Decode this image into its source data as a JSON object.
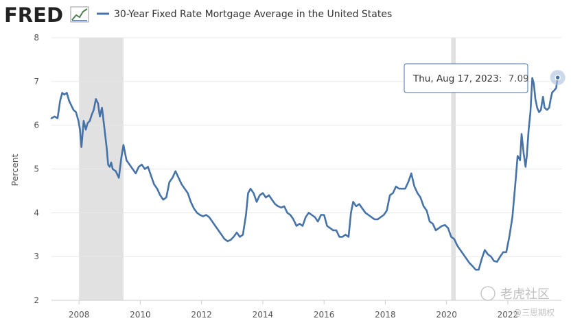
{
  "header": {
    "logo_text": "FRED",
    "legend_label": "30-Year Fixed Rate Mortgage Average in the United States"
  },
  "tooltip": {
    "date_text": "Thu, Aug 17, 2023:",
    "value_text": "7.09"
  },
  "watermark": {
    "brand_text": "老虎社区",
    "handle_text": "@三思期权"
  },
  "colors": {
    "series": "#4572a7",
    "recession": "#e1e1e1",
    "grid": "#e6e6e6",
    "tooltip_border": "#4572a7"
  },
  "chart_data": {
    "type": "line",
    "title": "30-Year Fixed Rate Mortgage Average in the United States",
    "ylabel": "Percent",
    "xlim": [
      2007.1,
      2023.75
    ],
    "ylim": [
      2,
      8
    ],
    "x_ticks": [
      "2008",
      "2010",
      "2012",
      "2014",
      "2016",
      "2018",
      "2020",
      "2022"
    ],
    "y_ticks": [
      "2",
      "3",
      "4",
      "5",
      "6",
      "7",
      "8"
    ],
    "grid": "horizontal",
    "recessions": [
      [
        2008.0,
        2009.45
      ],
      [
        2020.15,
        2020.3
      ]
    ],
    "series": [
      {
        "name": "30-Year Fixed Rate Mortgage Average in the United States",
        "points": [
          [
            2007.1,
            6.16
          ],
          [
            2007.2,
            6.2
          ],
          [
            2007.3,
            6.16
          ],
          [
            2007.38,
            6.55
          ],
          [
            2007.45,
            6.74
          ],
          [
            2007.52,
            6.7
          ],
          [
            2007.6,
            6.74
          ],
          [
            2007.68,
            6.55
          ],
          [
            2007.75,
            6.45
          ],
          [
            2007.82,
            6.35
          ],
          [
            2007.9,
            6.3
          ],
          [
            2007.98,
            6.1
          ],
          [
            2008.03,
            5.9
          ],
          [
            2008.08,
            5.5
          ],
          [
            2008.15,
            6.1
          ],
          [
            2008.22,
            5.9
          ],
          [
            2008.28,
            6.05
          ],
          [
            2008.35,
            6.1
          ],
          [
            2008.42,
            6.25
          ],
          [
            2008.48,
            6.35
          ],
          [
            2008.55,
            6.6
          ],
          [
            2008.62,
            6.5
          ],
          [
            2008.68,
            6.2
          ],
          [
            2008.75,
            6.4
          ],
          [
            2008.8,
            6.1
          ],
          [
            2008.85,
            5.8
          ],
          [
            2008.9,
            5.5
          ],
          [
            2008.95,
            5.1
          ],
          [
            2009.0,
            5.05
          ],
          [
            2009.05,
            5.15
          ],
          [
            2009.1,
            5.0
          ],
          [
            2009.2,
            4.95
          ],
          [
            2009.3,
            4.8
          ],
          [
            2009.38,
            5.25
          ],
          [
            2009.45,
            5.55
          ],
          [
            2009.55,
            5.2
          ],
          [
            2009.65,
            5.1
          ],
          [
            2009.75,
            5.0
          ],
          [
            2009.85,
            4.9
          ],
          [
            2009.95,
            5.05
          ],
          [
            2010.05,
            5.1
          ],
          [
            2010.15,
            5.0
          ],
          [
            2010.25,
            5.05
          ],
          [
            2010.35,
            4.85
          ],
          [
            2010.45,
            4.65
          ],
          [
            2010.55,
            4.55
          ],
          [
            2010.65,
            4.4
          ],
          [
            2010.75,
            4.3
          ],
          [
            2010.85,
            4.35
          ],
          [
            2010.95,
            4.7
          ],
          [
            2011.05,
            4.8
          ],
          [
            2011.15,
            4.95
          ],
          [
            2011.25,
            4.8
          ],
          [
            2011.35,
            4.65
          ],
          [
            2011.45,
            4.55
          ],
          [
            2011.55,
            4.45
          ],
          [
            2011.65,
            4.25
          ],
          [
            2011.75,
            4.1
          ],
          [
            2011.85,
            4.0
          ],
          [
            2011.95,
            3.95
          ],
          [
            2012.05,
            3.92
          ],
          [
            2012.15,
            3.95
          ],
          [
            2012.25,
            3.9
          ],
          [
            2012.35,
            3.8
          ],
          [
            2012.45,
            3.7
          ],
          [
            2012.55,
            3.6
          ],
          [
            2012.65,
            3.5
          ],
          [
            2012.75,
            3.4
          ],
          [
            2012.85,
            3.35
          ],
          [
            2012.95,
            3.38
          ],
          [
            2013.05,
            3.45
          ],
          [
            2013.15,
            3.55
          ],
          [
            2013.25,
            3.45
          ],
          [
            2013.35,
            3.5
          ],
          [
            2013.45,
            3.95
          ],
          [
            2013.52,
            4.45
          ],
          [
            2013.6,
            4.55
          ],
          [
            2013.7,
            4.45
          ],
          [
            2013.8,
            4.25
          ],
          [
            2013.9,
            4.4
          ],
          [
            2014.0,
            4.45
          ],
          [
            2014.1,
            4.35
          ],
          [
            2014.2,
            4.4
          ],
          [
            2014.3,
            4.3
          ],
          [
            2014.4,
            4.2
          ],
          [
            2014.5,
            4.15
          ],
          [
            2014.6,
            4.12
          ],
          [
            2014.7,
            4.15
          ],
          [
            2014.8,
            4.0
          ],
          [
            2014.9,
            3.95
          ],
          [
            2015.0,
            3.85
          ],
          [
            2015.1,
            3.7
          ],
          [
            2015.2,
            3.75
          ],
          [
            2015.3,
            3.7
          ],
          [
            2015.4,
            3.9
          ],
          [
            2015.5,
            4.0
          ],
          [
            2015.6,
            3.95
          ],
          [
            2015.7,
            3.9
          ],
          [
            2015.8,
            3.8
          ],
          [
            2015.9,
            3.95
          ],
          [
            2016.0,
            3.95
          ],
          [
            2016.1,
            3.7
          ],
          [
            2016.2,
            3.65
          ],
          [
            2016.3,
            3.6
          ],
          [
            2016.4,
            3.6
          ],
          [
            2016.5,
            3.45
          ],
          [
            2016.6,
            3.45
          ],
          [
            2016.7,
            3.5
          ],
          [
            2016.8,
            3.45
          ],
          [
            2016.88,
            4.0
          ],
          [
            2016.95,
            4.25
          ],
          [
            2017.05,
            4.15
          ],
          [
            2017.15,
            4.2
          ],
          [
            2017.25,
            4.1
          ],
          [
            2017.35,
            4.0
          ],
          [
            2017.45,
            3.95
          ],
          [
            2017.55,
            3.9
          ],
          [
            2017.65,
            3.85
          ],
          [
            2017.75,
            3.85
          ],
          [
            2017.85,
            3.9
          ],
          [
            2017.95,
            3.95
          ],
          [
            2018.05,
            4.05
          ],
          [
            2018.15,
            4.4
          ],
          [
            2018.25,
            4.45
          ],
          [
            2018.35,
            4.6
          ],
          [
            2018.45,
            4.55
          ],
          [
            2018.55,
            4.55
          ],
          [
            2018.65,
            4.55
          ],
          [
            2018.75,
            4.7
          ],
          [
            2018.85,
            4.9
          ],
          [
            2018.95,
            4.6
          ],
          [
            2019.05,
            4.45
          ],
          [
            2019.15,
            4.35
          ],
          [
            2019.25,
            4.15
          ],
          [
            2019.35,
            4.05
          ],
          [
            2019.45,
            3.8
          ],
          [
            2019.55,
            3.75
          ],
          [
            2019.65,
            3.6
          ],
          [
            2019.75,
            3.65
          ],
          [
            2019.85,
            3.7
          ],
          [
            2019.95,
            3.72
          ],
          [
            2020.05,
            3.65
          ],
          [
            2020.15,
            3.45
          ],
          [
            2020.25,
            3.4
          ],
          [
            2020.35,
            3.25
          ],
          [
            2020.45,
            3.15
          ],
          [
            2020.55,
            3.05
          ],
          [
            2020.65,
            2.95
          ],
          [
            2020.75,
            2.85
          ],
          [
            2020.85,
            2.78
          ],
          [
            2020.95,
            2.7
          ],
          [
            2021.05,
            2.7
          ],
          [
            2021.15,
            2.95
          ],
          [
            2021.25,
            3.15
          ],
          [
            2021.35,
            3.05
          ],
          [
            2021.45,
            3.0
          ],
          [
            2021.55,
            2.9
          ],
          [
            2021.65,
            2.88
          ],
          [
            2021.75,
            3.0
          ],
          [
            2021.85,
            3.1
          ],
          [
            2021.95,
            3.1
          ],
          [
            2022.05,
            3.45
          ],
          [
            2022.15,
            3.9
          ],
          [
            2022.25,
            4.7
          ],
          [
            2022.32,
            5.3
          ],
          [
            2022.4,
            5.2
          ],
          [
            2022.45,
            5.8
          ],
          [
            2022.52,
            5.35
          ],
          [
            2022.58,
            5.05
          ],
          [
            2022.62,
            5.3
          ],
          [
            2022.68,
            5.9
          ],
          [
            2022.74,
            6.3
          ],
          [
            2022.8,
            7.08
          ],
          [
            2022.85,
            6.95
          ],
          [
            2022.9,
            6.6
          ],
          [
            2022.96,
            6.4
          ],
          [
            2023.02,
            6.3
          ],
          [
            2023.08,
            6.35
          ],
          [
            2023.15,
            6.65
          ],
          [
            2023.2,
            6.4
          ],
          [
            2023.28,
            6.35
          ],
          [
            2023.35,
            6.4
          ],
          [
            2023.4,
            6.6
          ],
          [
            2023.45,
            6.75
          ],
          [
            2023.52,
            6.8
          ],
          [
            2023.58,
            6.85
          ],
          [
            2023.63,
            7.09
          ]
        ]
      }
    ],
    "highlight": {
      "x": 2023.63,
      "y": 7.09,
      "label": "Thu, Aug 17, 2023: 7.09"
    }
  }
}
